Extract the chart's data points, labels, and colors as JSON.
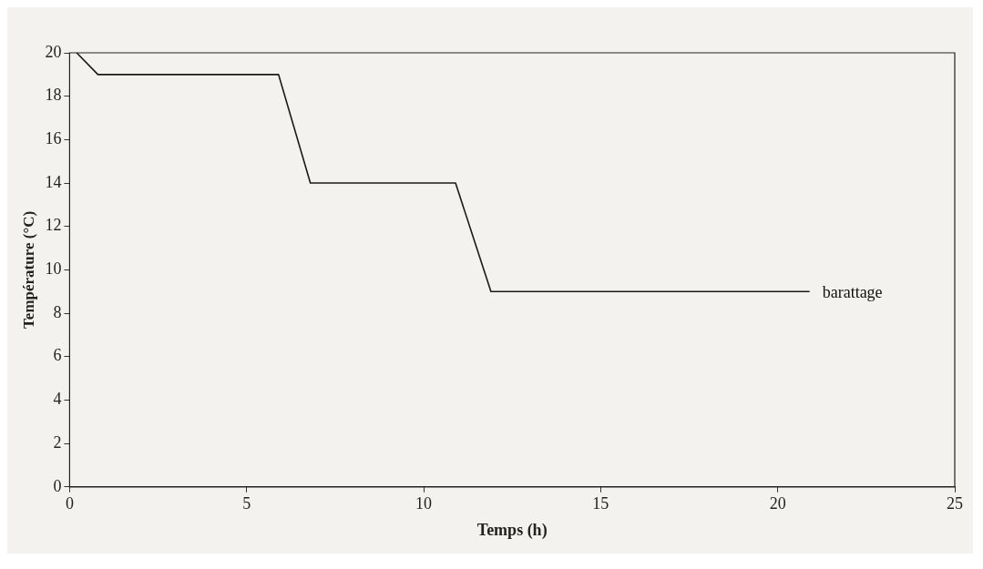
{
  "chart_data": {
    "type": "line",
    "xlabel": "Temps (h)",
    "ylabel": "Température (°C)",
    "series": [
      {
        "name": "barattage",
        "color": "#1a1a1a",
        "x": [
          0.2,
          0.8,
          5.9,
          6.8,
          10.9,
          11.9,
          20.9
        ],
        "values": [
          20,
          19,
          19,
          14,
          14,
          9,
          9
        ]
      }
    ],
    "xlim": [
      0,
      25
    ],
    "xticks": [
      0,
      5,
      10,
      15,
      20,
      25
    ],
    "ylim": [
      0,
      20
    ],
    "yticks": [
      0,
      2,
      4,
      6,
      8,
      10,
      12,
      14,
      16,
      18,
      20
    ],
    "grid": false,
    "legend": false,
    "marker": "none",
    "line_style": "solid"
  }
}
